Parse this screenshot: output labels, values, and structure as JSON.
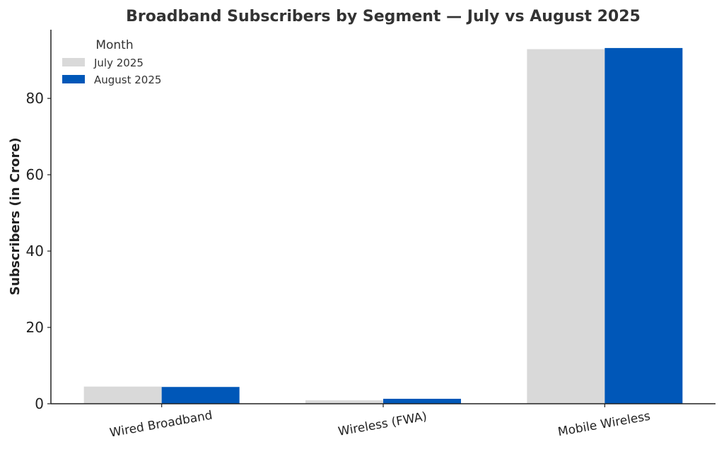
{
  "chart_data": {
    "type": "bar",
    "title": "Broadband Subscribers by Segment — July vs August 2025",
    "xlabel": "",
    "ylabel": "Subscribers (in Crore)",
    "categories": [
      "Wired Broadband",
      "Wireless (FWA)",
      "Mobile Wireless"
    ],
    "series": [
      {
        "name": "July 2025",
        "color": "#d9d9d9",
        "values": [
          4.5,
          0.9,
          92.9
        ]
      },
      {
        "name": "August 2025",
        "color": "#0057b8",
        "values": [
          4.4,
          1.3,
          93.2
        ]
      }
    ],
    "ylim": [
      0,
      98
    ],
    "yticks": [
      0,
      20,
      40,
      60,
      80
    ],
    "legend": {
      "title": "Month",
      "position": "top-left"
    },
    "grid": false
  }
}
